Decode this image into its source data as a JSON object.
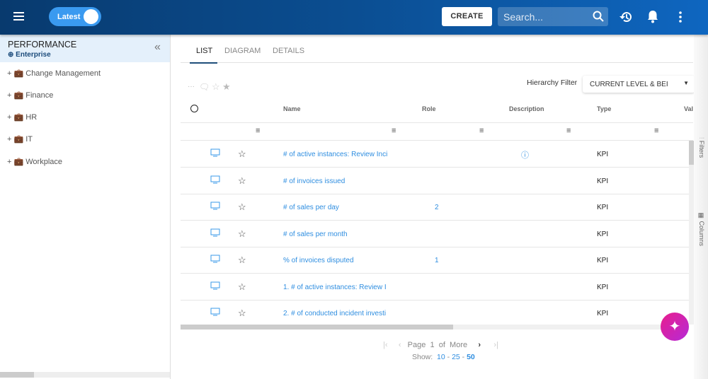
{
  "header": {
    "toggle_label": "Latest",
    "create_label": "CREATE",
    "search_placeholder": "Search..."
  },
  "sidebar": {
    "title": "PERFORMANCE",
    "subtitle": "Enterprise",
    "items": [
      {
        "label": "Change Management"
      },
      {
        "label": "Finance"
      },
      {
        "label": "HR"
      },
      {
        "label": "IT"
      },
      {
        "label": "Workplace"
      }
    ]
  },
  "tabs": [
    {
      "label": "LIST",
      "active": true
    },
    {
      "label": "DIAGRAM"
    },
    {
      "label": "DETAILS"
    }
  ],
  "toolbar": {
    "more": "···"
  },
  "hierarchy_filter": {
    "label": "Hierarchy Filter",
    "value": "CURRENT LEVEL & BEI"
  },
  "table": {
    "columns": [
      "Name",
      "Role",
      "Description",
      "Type",
      "Val"
    ],
    "rows": [
      {
        "name": "# of active instances: Review Inci",
        "role": "",
        "description_info": true,
        "type": "KPI"
      },
      {
        "name": "# of invoices issued",
        "role": "",
        "type": "KPI"
      },
      {
        "name": "# of sales per day",
        "role": "2",
        "type": "KPI"
      },
      {
        "name": "# of sales per month",
        "role": "",
        "type": "KPI"
      },
      {
        "name": "% of invoices disputed",
        "role": "1",
        "type": "KPI"
      },
      {
        "name": "1. # of active instances: Review I",
        "role": "",
        "type": "KPI"
      },
      {
        "name": "2. # of conducted incident investi",
        "role": "",
        "type": "KPI"
      }
    ]
  },
  "side_panels": {
    "filters": "Filters",
    "columns": "Columns"
  },
  "pagination": {
    "page_label": "Page",
    "page": "1",
    "of_label": "of",
    "total": "More",
    "show_label": "Show:",
    "sizes": [
      "10",
      "25",
      "50"
    ],
    "selected_size": "50"
  },
  "colors": {
    "header": "#0b4e92",
    "accent": "#2f8ee0",
    "fab": "#d62fc0"
  }
}
